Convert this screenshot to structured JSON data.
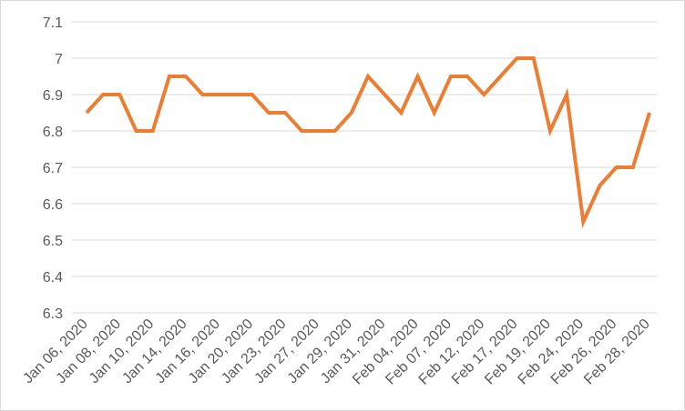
{
  "chart_data": {
    "type": "line",
    "title": "",
    "xlabel": "",
    "ylabel": "",
    "ylim": [
      6.3,
      7.1
    ],
    "yticks": [
      "6.3",
      "6.4",
      "6.5",
      "6.6",
      "6.7",
      "6.8",
      "6.9",
      "7",
      "7.1"
    ],
    "grid": true,
    "legend": "none",
    "x_tick_labels": [
      "Jan 06, 2020",
      "Jan 08, 2020",
      "Jan 10, 2020",
      "Jan 14, 2020",
      "Jan 16, 2020",
      "Jan 20, 2020",
      "Jan 23, 2020",
      "Jan 27, 2020",
      "Jan 29, 2020",
      "Jan 31, 2020",
      "Feb 04, 2020",
      "Feb 07, 2020",
      "Feb 12, 2020",
      "Feb 17, 2020",
      "Feb 19, 2020",
      "Feb 24, 2020",
      "Feb 26, 2020",
      "Feb 28, 2020"
    ],
    "series": [
      {
        "color": "#ED7D31",
        "values": [
          6.85,
          6.9,
          6.9,
          6.8,
          6.8,
          6.95,
          6.95,
          6.9,
          6.9,
          6.9,
          6.9,
          6.85,
          6.85,
          6.8,
          6.8,
          6.8,
          6.85,
          6.95,
          6.9,
          6.85,
          6.95,
          6.85,
          6.95,
          6.95,
          6.9,
          6.95,
          7.0,
          7.0,
          6.8,
          6.9,
          6.55,
          6.65,
          6.7,
          6.7,
          6.85
        ]
      }
    ]
  }
}
